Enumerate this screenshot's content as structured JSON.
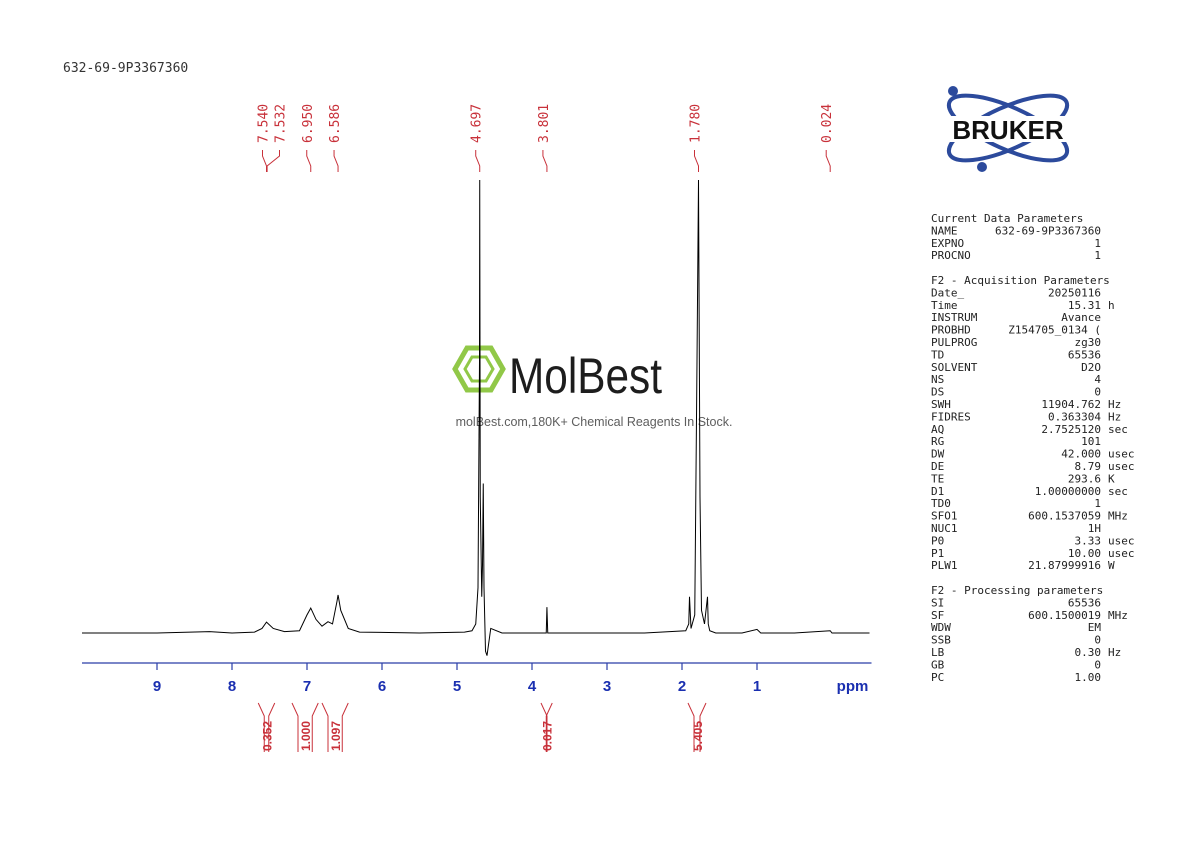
{
  "sample_id": "632-69-9P3367360",
  "logo": "BRUKER",
  "watermark": {
    "brand": "MolBest",
    "tagline": "molBest.com,180K+ Chemical Reagents In Stock."
  },
  "chart_data": {
    "type": "line",
    "color": "#000000",
    "x_label": "ppm",
    "xlim": [
      10,
      -0.5
    ],
    "xticks": [
      9,
      8,
      7,
      6,
      5,
      4,
      3,
      2,
      1
    ],
    "ylim": [
      0,
      100
    ],
    "x": [
      10,
      9.0,
      8.3,
      8.0,
      7.7,
      7.6,
      7.54,
      7.45,
      7.3,
      7.1,
      7.0,
      6.95,
      6.88,
      6.8,
      6.72,
      6.66,
      6.6,
      6.586,
      6.55,
      6.45,
      6.3,
      5.5,
      4.9,
      4.8,
      4.75,
      4.72,
      4.7,
      4.697,
      4.69,
      4.67,
      4.66,
      4.65,
      4.64,
      4.62,
      4.6,
      4.55,
      4.4,
      3.9,
      3.81,
      3.801,
      3.79,
      3.7,
      2.5,
      1.95,
      1.91,
      1.9,
      1.88,
      1.83,
      1.8,
      1.78,
      1.76,
      1.74,
      1.7,
      1.66,
      1.65,
      1.63,
      1.55,
      1.2,
      1.0,
      0.95,
      0.5,
      0.024,
      0,
      -0.5
    ],
    "values": [
      0,
      0,
      0.3,
      0,
      0.2,
      1,
      2.4,
      1,
      0.3,
      0.5,
      4,
      5.5,
      3,
      1.5,
      2.5,
      2,
      7,
      8.4,
      5,
      1,
      0.2,
      0,
      0.2,
      0.5,
      2,
      10,
      60,
      100,
      30,
      8,
      15,
      33,
      10,
      -4,
      -5,
      1,
      0,
      0,
      0,
      5.7,
      0,
      0,
      0,
      0.5,
      2,
      8,
      1,
      4,
      60,
      100,
      30,
      5,
      2,
      8,
      2,
      0.5,
      0,
      0,
      0.8,
      0,
      0,
      0.5,
      0,
      0
    ],
    "peaks": [
      {
        "value": 7.54,
        "label": "7.540"
      },
      7.532,
      {
        "value": 6.95,
        "label": "6.950"
      },
      6.586,
      4.697,
      3.801,
      {
        "value": 1.78,
        "label": "1.780"
      },
      0.024
    ],
    "integrals": [
      {
        "range": [
          7.65,
          7.43
        ],
        "value": 0.352
      },
      {
        "range": [
          7.2,
          6.85
        ],
        "value": {
          "value": 1,
          "label": "1.000"
        }
      },
      {
        "range": [
          6.8,
          6.45
        ],
        "value": 1.097
      },
      {
        "range": [
          3.88,
          3.73
        ],
        "value": 0.017
      },
      {
        "range": [
          1.92,
          1.68
        ],
        "value": 5.405
      }
    ]
  },
  "parameters": [
    {
      "title": "Current Data Parameters",
      "rows": [
        [
          "NAME",
          "632-69-9P3367360",
          ""
        ],
        [
          "EXPNO",
          "1",
          ""
        ],
        [
          "PROCNO",
          "1",
          ""
        ]
      ]
    },
    {
      "title": "F2 - Acquisition Parameters",
      "rows": [
        [
          "Date_",
          "20250116",
          ""
        ],
        [
          "Time",
          "15.31",
          "h"
        ],
        [
          "INSTRUM",
          "Avance",
          ""
        ],
        [
          "PROBHD",
          "Z154705_0134 (",
          ""
        ],
        [
          "PULPROG",
          "zg30",
          ""
        ],
        [
          "TD",
          "65536",
          ""
        ],
        [
          "SOLVENT",
          "D2O",
          ""
        ],
        [
          "NS",
          "4",
          ""
        ],
        [
          "DS",
          "0",
          ""
        ],
        [
          "SWH",
          "11904.762",
          "Hz"
        ],
        [
          "FIDRES",
          "0.363304",
          "Hz"
        ],
        [
          "AQ",
          "2.7525120",
          "sec"
        ],
        [
          "RG",
          "101",
          ""
        ],
        [
          "DW",
          "42.000",
          "usec"
        ],
        [
          "DE",
          "8.79",
          "usec"
        ],
        [
          "TE",
          "293.6",
          "K"
        ],
        [
          "D1",
          "1.00000000",
          "sec"
        ],
        [
          "TD0",
          "1",
          ""
        ],
        [
          "SFO1",
          "600.1537059",
          "MHz"
        ],
        [
          "NUC1",
          "1H",
          ""
        ],
        [
          "P0",
          "3.33",
          "usec"
        ],
        [
          "P1",
          "10.00",
          "usec"
        ],
        [
          "PLW1",
          "21.87999916",
          "W"
        ]
      ]
    },
    {
      "title": "F2 - Processing parameters",
      "rows": [
        [
          "SI",
          "65536",
          ""
        ],
        [
          "SF",
          "600.1500019",
          "MHz"
        ],
        [
          "WDW",
          "EM",
          ""
        ],
        [
          "SSB",
          "0",
          ""
        ],
        [
          "LB",
          "0.30",
          "Hz"
        ],
        [
          "GB",
          "0",
          ""
        ],
        [
          "PC",
          "1.00",
          ""
        ]
      ]
    }
  ]
}
